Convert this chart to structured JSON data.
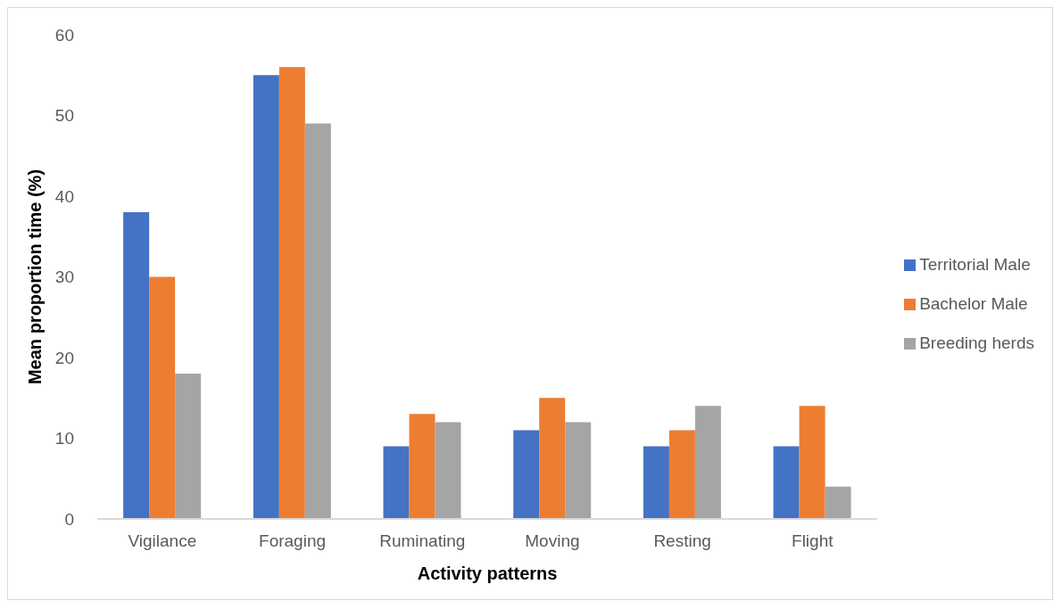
{
  "chart_data": {
    "type": "bar",
    "xlabel": "Activity patterns",
    "ylabel": "Mean proportion time (%)",
    "categories": [
      "Vigilance",
      "Foraging",
      "Ruminating",
      "Moving",
      "Resting",
      "Flight"
    ],
    "series": [
      {
        "name": "Territorial Male",
        "color": "#4472c4",
        "values": [
          38,
          55,
          9,
          11,
          9,
          9
        ]
      },
      {
        "name": "Bachelor Male",
        "color": "#ed7d31",
        "values": [
          30,
          56,
          13,
          15,
          11,
          14
        ]
      },
      {
        "name": "Breeding herds",
        "color": "#a5a5a5",
        "values": [
          18,
          49,
          12,
          12,
          14,
          4
        ]
      }
    ],
    "ylim": [
      0,
      60
    ],
    "yticks": [
      0,
      10,
      20,
      30,
      40,
      50,
      60
    ],
    "grid": false,
    "legend": "right"
  }
}
